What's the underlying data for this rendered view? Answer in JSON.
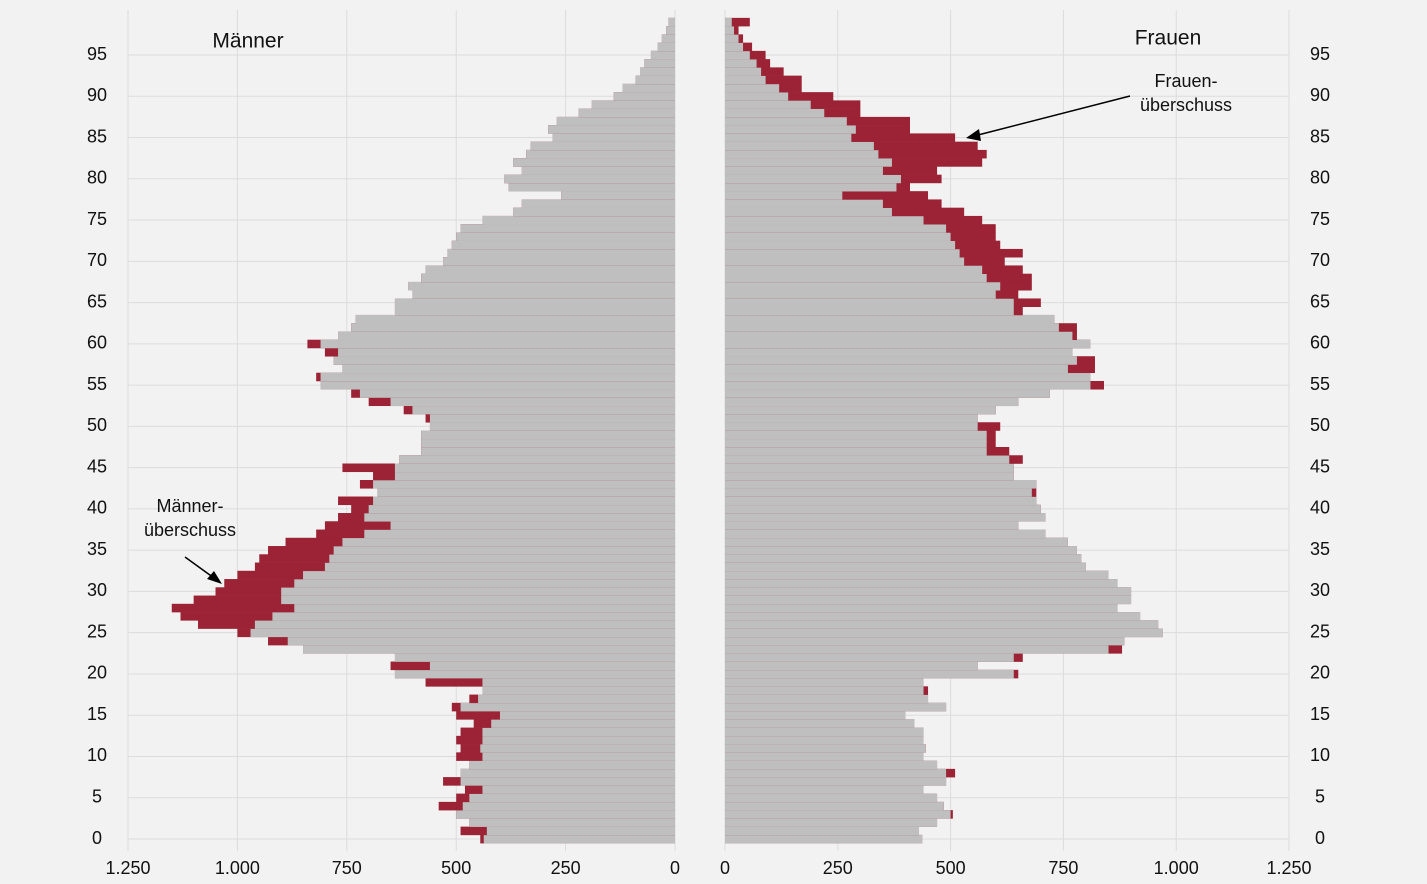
{
  "chart_data": {
    "type": "pyramid",
    "series": [
      {
        "name": "Männer",
        "values": [
          445,
          490,
          470,
          500,
          540,
          500,
          480,
          530,
          490,
          470,
          500,
          490,
          500,
          490,
          460,
          500,
          510,
          470,
          440,
          570,
          640,
          650,
          640,
          850,
          930,
          1000,
          1090,
          1130,
          1150,
          1100,
          1050,
          1030,
          1000,
          960,
          950,
          930,
          890,
          820,
          800,
          770,
          740,
          770,
          680,
          720,
          690,
          760,
          630,
          580,
          580,
          580,
          560,
          570,
          620,
          700,
          740,
          810,
          820,
          760,
          780,
          800,
          840,
          770,
          740,
          730,
          640,
          640,
          600,
          610,
          580,
          570,
          530,
          520,
          510,
          500,
          490,
          440,
          370,
          350,
          260,
          380,
          390,
          350,
          370,
          340,
          330,
          280,
          290,
          270,
          220,
          190,
          140,
          120,
          90,
          80,
          70,
          55,
          40,
          30,
          20,
          15
        ]
      },
      {
        "name": "Frauen",
        "values": [
          437,
          430,
          470,
          505,
          485,
          470,
          440,
          490,
          510,
          470,
          440,
          445,
          440,
          440,
          420,
          400,
          490,
          450,
          450,
          440,
          650,
          560,
          660,
          880,
          885,
          970,
          960,
          920,
          870,
          900,
          900,
          870,
          850,
          800,
          790,
          780,
          760,
          710,
          650,
          710,
          700,
          690,
          690,
          690,
          640,
          640,
          660,
          630,
          600,
          600,
          610,
          560,
          600,
          650,
          720,
          840,
          810,
          820,
          820,
          770,
          810,
          780,
          780,
          730,
          660,
          700,
          650,
          680,
          680,
          660,
          620,
          660,
          610,
          600,
          600,
          570,
          530,
          480,
          450,
          410,
          480,
          470,
          570,
          580,
          560,
          510,
          410,
          410,
          300,
          300,
          240,
          170,
          170,
          130,
          100,
          90,
          60,
          40,
          30,
          55
        ]
      }
    ],
    "y": [
      0,
      1,
      2,
      3,
      4,
      5,
      6,
      7,
      8,
      9,
      10,
      11,
      12,
      13,
      14,
      15,
      16,
      17,
      18,
      19,
      20,
      21,
      22,
      23,
      24,
      25,
      26,
      27,
      28,
      29,
      30,
      31,
      32,
      33,
      34,
      35,
      36,
      37,
      38,
      39,
      40,
      41,
      42,
      43,
      44,
      45,
      46,
      47,
      48,
      49,
      50,
      51,
      52,
      53,
      54,
      55,
      56,
      57,
      58,
      59,
      60,
      61,
      62,
      63,
      64,
      65,
      66,
      67,
      68,
      69,
      70,
      71,
      72,
      73,
      74,
      75,
      76,
      77,
      78,
      79,
      80,
      81,
      82,
      83,
      84,
      85,
      86,
      87,
      88,
      89,
      90,
      91,
      92,
      93,
      94,
      95,
      96,
      97,
      98,
      99
    ],
    "ylim": [
      -0.5,
      99.5
    ],
    "yticks": [
      0,
      5,
      10,
      15,
      20,
      25,
      30,
      35,
      40,
      45,
      50,
      55,
      60,
      65,
      70,
      75,
      80,
      85,
      90,
      95
    ],
    "xlim": [
      0,
      1250
    ],
    "xticks": [
      0,
      250,
      500,
      750,
      {
        "value": 1000,
        "label": "1.000"
      },
      {
        "value": 1250,
        "label": "1.250"
      }
    ],
    "color": "#bfbfbf",
    "surplus_color": "#9b2335",
    "grid": true,
    "annotations": [
      {
        "lines": [
          "Männer-",
          "überschuss"
        ]
      },
      {
        "lines": [
          "Frauen-",
          "überschuss"
        ]
      }
    ]
  }
}
